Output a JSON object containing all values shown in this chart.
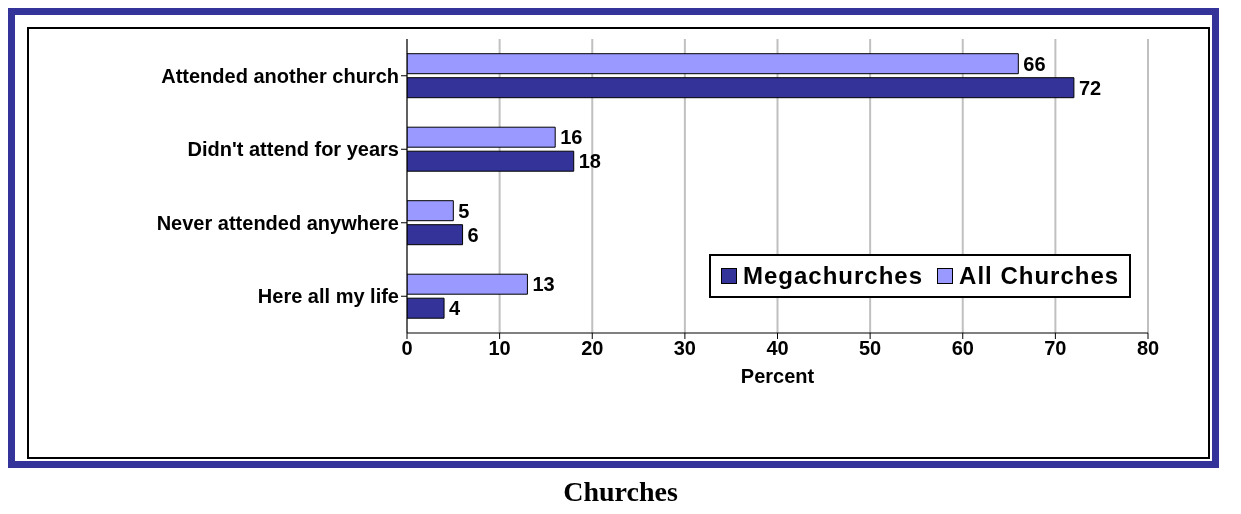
{
  "chart_data": {
    "type": "bar",
    "orientation": "horizontal",
    "title": "Churches",
    "xlabel": "Percent",
    "categories": [
      "Attended another church",
      "Didn't attend for years",
      "Never attended anywhere",
      "Here all my life"
    ],
    "series": [
      {
        "name": "Megachurches",
        "color": "#333399",
        "values": [
          72,
          18,
          6,
          4
        ]
      },
      {
        "name": "All Churches",
        "color": "#9999ff",
        "values": [
          66,
          16,
          5,
          13
        ]
      }
    ],
    "xlim": [
      0,
      80
    ],
    "xticks": [
      0,
      10,
      20,
      30,
      40,
      50,
      60,
      70,
      80
    ],
    "grid": "x",
    "legend": "right",
    "data_labels": true
  }
}
